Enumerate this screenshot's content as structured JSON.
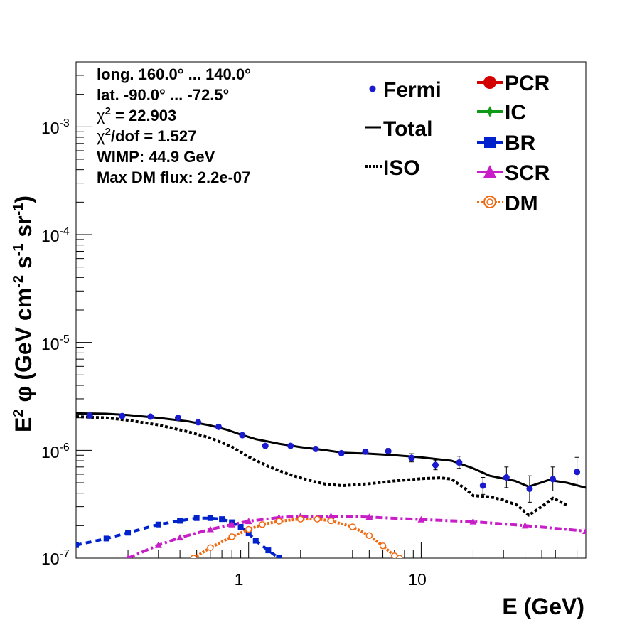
{
  "colors": {
    "fermi": "#1a1ad0",
    "total": "#000000",
    "iso": "#000000",
    "pcr": "#d40000",
    "ic": "#0e9a16",
    "br": "#0022cc",
    "scr": "#c81ec8",
    "dm": "#f06a14"
  },
  "info": {
    "line1": "long. 160.0° ... 140.0°",
    "line2": "lat. -90.0° ... -72.5°",
    "chi_prefix": "χ",
    "chi_sup": "2",
    "chi_value": " = 22.903",
    "chidof_prefix": "χ",
    "chidof_sup": "2",
    "chidof_value": "/dof = 1.527",
    "wimp": "WIMP: 44.9 GeV",
    "maxdm": "Max DM flux: 2.2e-07"
  },
  "legend": {
    "fermi": "Fermi",
    "total": "Total",
    "iso": "ISO",
    "pcr": "PCR",
    "ic": "IC",
    "br": "BR",
    "scr": "SCR",
    "dm": "DM"
  },
  "axis_text": {
    "xtitle": "E (GeV)",
    "y_E": "E",
    "y_2": "2",
    "y_phi": "φ",
    "y_open": "(GeV cm",
    "y_m2": "-2",
    "y_s": " s",
    "y_m1a": "-1",
    "y_sr": " sr",
    "y_m1b": "-1",
    "y_close": ")"
  },
  "chart_data": {
    "type": "scatter",
    "x_scale": "log",
    "y_scale": "log",
    "xlim": [
      0.1,
      90
    ],
    "ylim": [
      1e-07,
      0.004
    ],
    "xlabel": "E (GeV)",
    "ylabel": "E² φ (GeV cm⁻² s⁻¹ sr⁻¹)",
    "grid": false,
    "x_tick_labels": [
      {
        "value": 1,
        "label": "1"
      },
      {
        "value": 10,
        "label": "10"
      }
    ],
    "y_tick_labels": [
      {
        "value": 1e-07,
        "base": "10",
        "exp": "-7"
      },
      {
        "value": 1e-06,
        "base": "10",
        "exp": "-6"
      },
      {
        "value": 1e-05,
        "base": "10",
        "exp": "-5"
      },
      {
        "value": 0.0001,
        "base": "10",
        "exp": "-4"
      },
      {
        "value": 0.001,
        "base": "10",
        "exp": "-3"
      }
    ],
    "fermi": {
      "x": [
        0.12,
        0.185,
        0.27,
        0.39,
        0.51,
        0.67,
        0.92,
        1.25,
        1.75,
        2.45,
        3.45,
        4.75,
        6.45,
        8.8,
        12.1,
        16.6,
        22.8,
        31.2,
        42.5,
        58.0,
        80.0
      ],
      "y": [
        2.1e-06,
        2.08e-06,
        2.05e-06,
        2e-06,
        1.82e-06,
        1.65e-06,
        1.38e-06,
        1.1e-06,
        1.1e-06,
        1.03e-06,
        9.4e-07,
        9.7e-07,
        9.8e-07,
        8.5e-07,
        7.3e-07,
        7.7e-07,
        4.7e-07,
        5.6e-07,
        4.4e-07,
        5.4e-07,
        6.3e-07
      ],
      "err_lo": [
        2.07e-06,
        2.05e-06,
        2.02e-06,
        1.97e-06,
        1.79e-06,
        1.62e-06,
        1.35e-06,
        1.07e-06,
        1.07e-06,
        1e-06,
        9.1e-07,
        9.3e-07,
        9.3e-07,
        7.8e-07,
        6.6e-07,
        6.8e-07,
        3.9e-07,
        4.5e-07,
        3.3e-07,
        4.2e-07,
        4.7e-07
      ],
      "err_hi": [
        2.13e-06,
        2.11e-06,
        2.08e-06,
        2.03e-06,
        1.85e-06,
        1.68e-06,
        1.41e-06,
        1.13e-06,
        1.13e-06,
        1.06e-06,
        9.7e-07,
        1.01e-06,
        1.04e-06,
        9.3e-07,
        8.1e-07,
        8.8e-07,
        5.6e-07,
        7e-07,
        5.8e-07,
        7e-07,
        8.6e-07
      ]
    },
    "series": [
      {
        "name": "Total",
        "style": "solid",
        "x": [
          0.1,
          0.15,
          0.2,
          0.3,
          0.45,
          0.6,
          0.75,
          0.9,
          1.1,
          1.5,
          2.0,
          2.8,
          3.5,
          5.0,
          7.0,
          10.0,
          15.0,
          20.0,
          25.0,
          35.0,
          42.0,
          55.0,
          70.0,
          90.0
        ],
        "y": [
          2.2e-06,
          2.18e-06,
          2.12e-06,
          2e-06,
          1.85e-06,
          1.7e-06,
          1.55e-06,
          1.4e-06,
          1.27e-06,
          1.15e-06,
          1.07e-06,
          1e-06,
          9.5e-07,
          9.3e-07,
          9e-07,
          8.6e-07,
          8e-07,
          6.8e-07,
          5.8e-07,
          5.2e-07,
          4.6e-07,
          5.3e-07,
          5e-07,
          4.5e-07
        ]
      },
      {
        "name": "ISO",
        "style": "dotted",
        "x": [
          0.1,
          0.15,
          0.2,
          0.3,
          0.45,
          0.6,
          0.8,
          1.0,
          1.3,
          1.7,
          2.2,
          2.8,
          3.5,
          5.0,
          7.0,
          10.0,
          13.0,
          15.0,
          18.0,
          20.0,
          25.0,
          30.0,
          36.0,
          42.0,
          50.0,
          58.0,
          65.0,
          70.0
        ],
        "y": [
          2.05e-06,
          2e-06,
          1.9e-06,
          1.72e-06,
          1.48e-06,
          1.3e-06,
          1.08e-06,
          8.7e-07,
          7.1e-07,
          6e-07,
          5.3e-07,
          4.85e-07,
          4.7e-07,
          4.9e-07,
          5.2e-07,
          5.45e-07,
          5.55e-07,
          5.4e-07,
          4.4e-07,
          3.8e-07,
          3.7e-07,
          3.45e-07,
          3.1e-07,
          2.5e-07,
          3e-07,
          3.6e-07,
          3.3e-07,
          3.1e-07
        ]
      },
      {
        "name": "BR",
        "style": "dashed-square",
        "x": [
          0.1,
          0.15,
          0.2,
          0.3,
          0.4,
          0.5,
          0.6,
          0.7,
          0.8,
          0.9,
          1.0,
          1.1,
          1.3,
          1.5
        ],
        "y": [
          1.32e-07,
          1.52e-07,
          1.72e-07,
          2.05e-07,
          2.22e-07,
          2.35e-07,
          2.35e-07,
          2.3e-07,
          2.15e-07,
          1.95e-07,
          1.7e-07,
          1.45e-07,
          1.18e-07,
          1e-07
        ]
      },
      {
        "name": "SCR",
        "style": "dashdot-triangle",
        "x": [
          0.2,
          0.3,
          0.4,
          0.6,
          0.8,
          1.0,
          1.5,
          2.0,
          3.0,
          5.0,
          10.0,
          20.0,
          40.0,
          90.0
        ],
        "y": [
          1e-07,
          1.32e-07,
          1.55e-07,
          1.85e-07,
          2.05e-07,
          2.2e-07,
          2.38e-07,
          2.45e-07,
          2.45e-07,
          2.4e-07,
          2.28e-07,
          2.18e-07,
          2e-07,
          1.78e-07
        ]
      },
      {
        "name": "DM",
        "style": "dotted-circle",
        "x": [
          0.48,
          0.6,
          0.8,
          1.0,
          1.2,
          1.5,
          2.0,
          2.5,
          3.0,
          4.0,
          5.0,
          6.0,
          7.0,
          7.5
        ],
        "y": [
          1e-07,
          1.25e-07,
          1.58e-07,
          1.85e-07,
          2.05e-07,
          2.2e-07,
          2.3e-07,
          2.3e-07,
          2.22e-07,
          1.95e-07,
          1.62e-07,
          1.3e-07,
          1.05e-07,
          1e-07
        ]
      }
    ]
  }
}
